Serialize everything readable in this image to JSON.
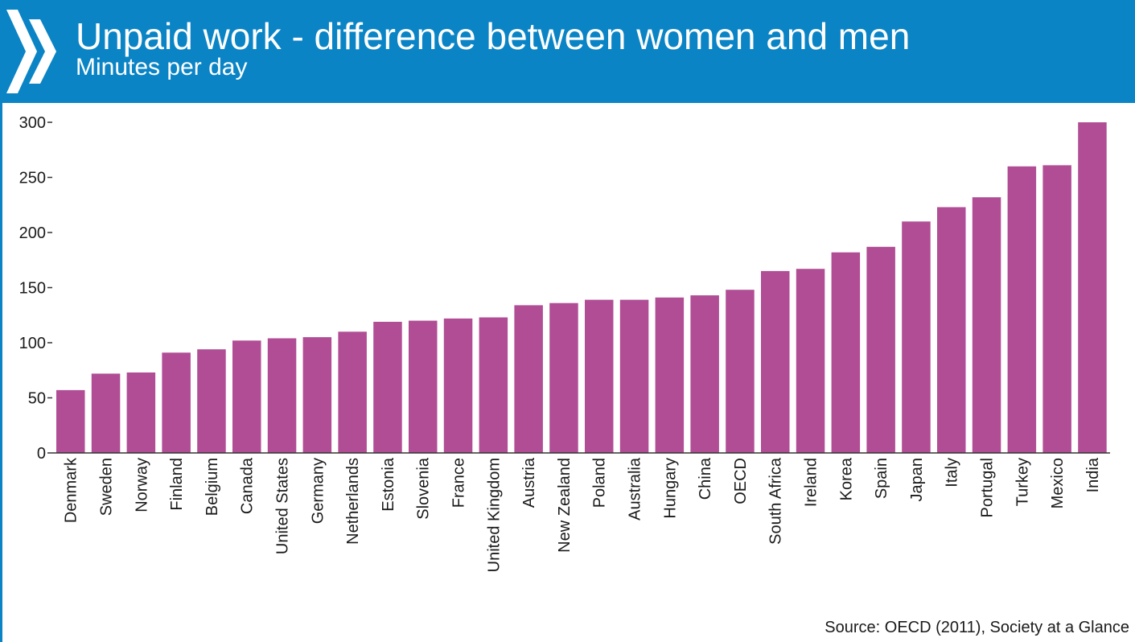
{
  "header": {
    "title": "Unpaid work - difference between women and men",
    "subtitle": "Minutes per day"
  },
  "source": "Source: OECD (2011), Society at a Glance",
  "colors": {
    "banner": "#0a84c5",
    "bar": "#b04d95",
    "axis": "#333333"
  },
  "chart_data": {
    "type": "bar",
    "title": "Unpaid work - difference between women and men",
    "subtitle": "Minutes per day",
    "xlabel": "",
    "ylabel": "",
    "ylim": [
      0,
      300
    ],
    "yticks": [
      0,
      50,
      100,
      150,
      200,
      250,
      300
    ],
    "grid": false,
    "legend": "none",
    "categories": [
      "Denmark",
      "Sweden",
      "Norway",
      "Finland",
      "Belgium",
      "Canada",
      "United States",
      "Germany",
      "Netherlands",
      "Estonia",
      "Slovenia",
      "France",
      "United Kingdom",
      "Austria",
      "New Zealand",
      "Poland",
      "Australia",
      "Hungary",
      "China",
      "OECD",
      "South Africa",
      "Ireland",
      "Korea",
      "Spain",
      "Japan",
      "Italy",
      "Portugal",
      "Turkey",
      "Mexico",
      "India"
    ],
    "values": [
      57,
      72,
      73,
      91,
      94,
      102,
      104,
      105,
      110,
      119,
      120,
      122,
      123,
      134,
      136,
      139,
      139,
      141,
      143,
      148,
      165,
      167,
      182,
      187,
      210,
      223,
      232,
      260,
      261,
      300
    ]
  }
}
